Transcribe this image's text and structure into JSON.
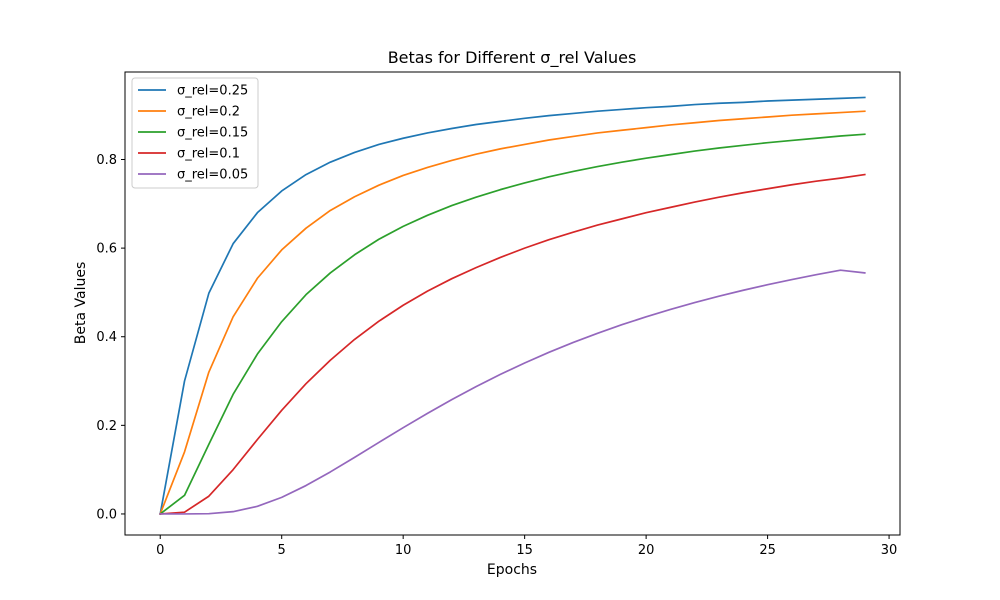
{
  "chart_data": {
    "type": "line",
    "title": "Betas for Different σ_rel Values",
    "xlabel": "Epochs",
    "ylabel": "Beta Values",
    "xlim": [
      -1.45,
      30.45
    ],
    "ylim": [
      -0.0475,
      0.9975
    ],
    "xticks": [
      0,
      5,
      10,
      15,
      20,
      25,
      30
    ],
    "yticks": [
      0.0,
      0.2,
      0.4,
      0.6,
      0.8
    ],
    "xtick_labels": [
      "0",
      "5",
      "10",
      "15",
      "20",
      "25",
      "30"
    ],
    "ytick_labels": [
      "0.0",
      "0.2",
      "0.4",
      "0.6",
      "0.8"
    ],
    "grid": false,
    "legend_position": "top-left",
    "x": [
      0,
      1,
      2,
      3,
      4,
      5,
      6,
      7,
      8,
      9,
      10,
      11,
      12,
      13,
      14,
      15,
      16,
      17,
      18,
      19,
      20,
      21,
      22,
      23,
      24,
      25,
      26,
      27,
      28,
      29
    ],
    "series": [
      {
        "name": "σ_rel=0.25",
        "color": "#1f77b4",
        "values": [
          0.0,
          0.3,
          0.498,
          0.61,
          0.68,
          0.729,
          0.766,
          0.794,
          0.816,
          0.834,
          0.848,
          0.86,
          0.87,
          0.879,
          0.886,
          0.893,
          0.899,
          0.904,
          0.909,
          0.913,
          0.917,
          0.92,
          0.924,
          0.927,
          0.929,
          0.932,
          0.934,
          0.936,
          0.938,
          0.94
        ]
      },
      {
        "name": "σ_rel=0.2",
        "color": "#ff7f0e",
        "values": [
          0.0,
          0.14,
          0.32,
          0.445,
          0.532,
          0.596,
          0.645,
          0.685,
          0.716,
          0.742,
          0.764,
          0.782,
          0.798,
          0.812,
          0.824,
          0.834,
          0.844,
          0.852,
          0.86,
          0.866,
          0.872,
          0.878,
          0.883,
          0.888,
          0.892,
          0.896,
          0.9,
          0.903,
          0.906,
          0.909
        ]
      },
      {
        "name": "σ_rel=0.15",
        "color": "#2ca02c",
        "values": [
          0.0,
          0.042,
          0.157,
          0.27,
          0.361,
          0.434,
          0.495,
          0.544,
          0.585,
          0.62,
          0.649,
          0.674,
          0.696,
          0.715,
          0.732,
          0.747,
          0.761,
          0.773,
          0.784,
          0.794,
          0.803,
          0.811,
          0.819,
          0.826,
          0.832,
          0.838,
          0.843,
          0.848,
          0.853,
          0.857
        ]
      },
      {
        "name": "σ_rel=0.1",
        "color": "#d62728",
        "values": [
          0.0,
          0.004,
          0.04,
          0.1,
          0.168,
          0.234,
          0.294,
          0.347,
          0.394,
          0.435,
          0.471,
          0.503,
          0.531,
          0.556,
          0.579,
          0.6,
          0.619,
          0.636,
          0.652,
          0.666,
          0.68,
          0.692,
          0.704,
          0.715,
          0.725,
          0.734,
          0.743,
          0.751,
          0.758,
          0.766
        ]
      },
      {
        "name": "σ_rel=0.05",
        "color": "#9467bd",
        "values": [
          0.0,
          0.0,
          0.0006,
          0.0052,
          0.0172,
          0.0374,
          0.0641,
          0.0948,
          0.1277,
          0.1614,
          0.1947,
          0.2271,
          0.2581,
          0.2874,
          0.315,
          0.3407,
          0.3648,
          0.3871,
          0.4078,
          0.4271,
          0.445,
          0.4616,
          0.4771,
          0.4915,
          0.5049,
          0.5174,
          0.5291,
          0.54,
          0.5502,
          0.544
        ]
      }
    ]
  }
}
